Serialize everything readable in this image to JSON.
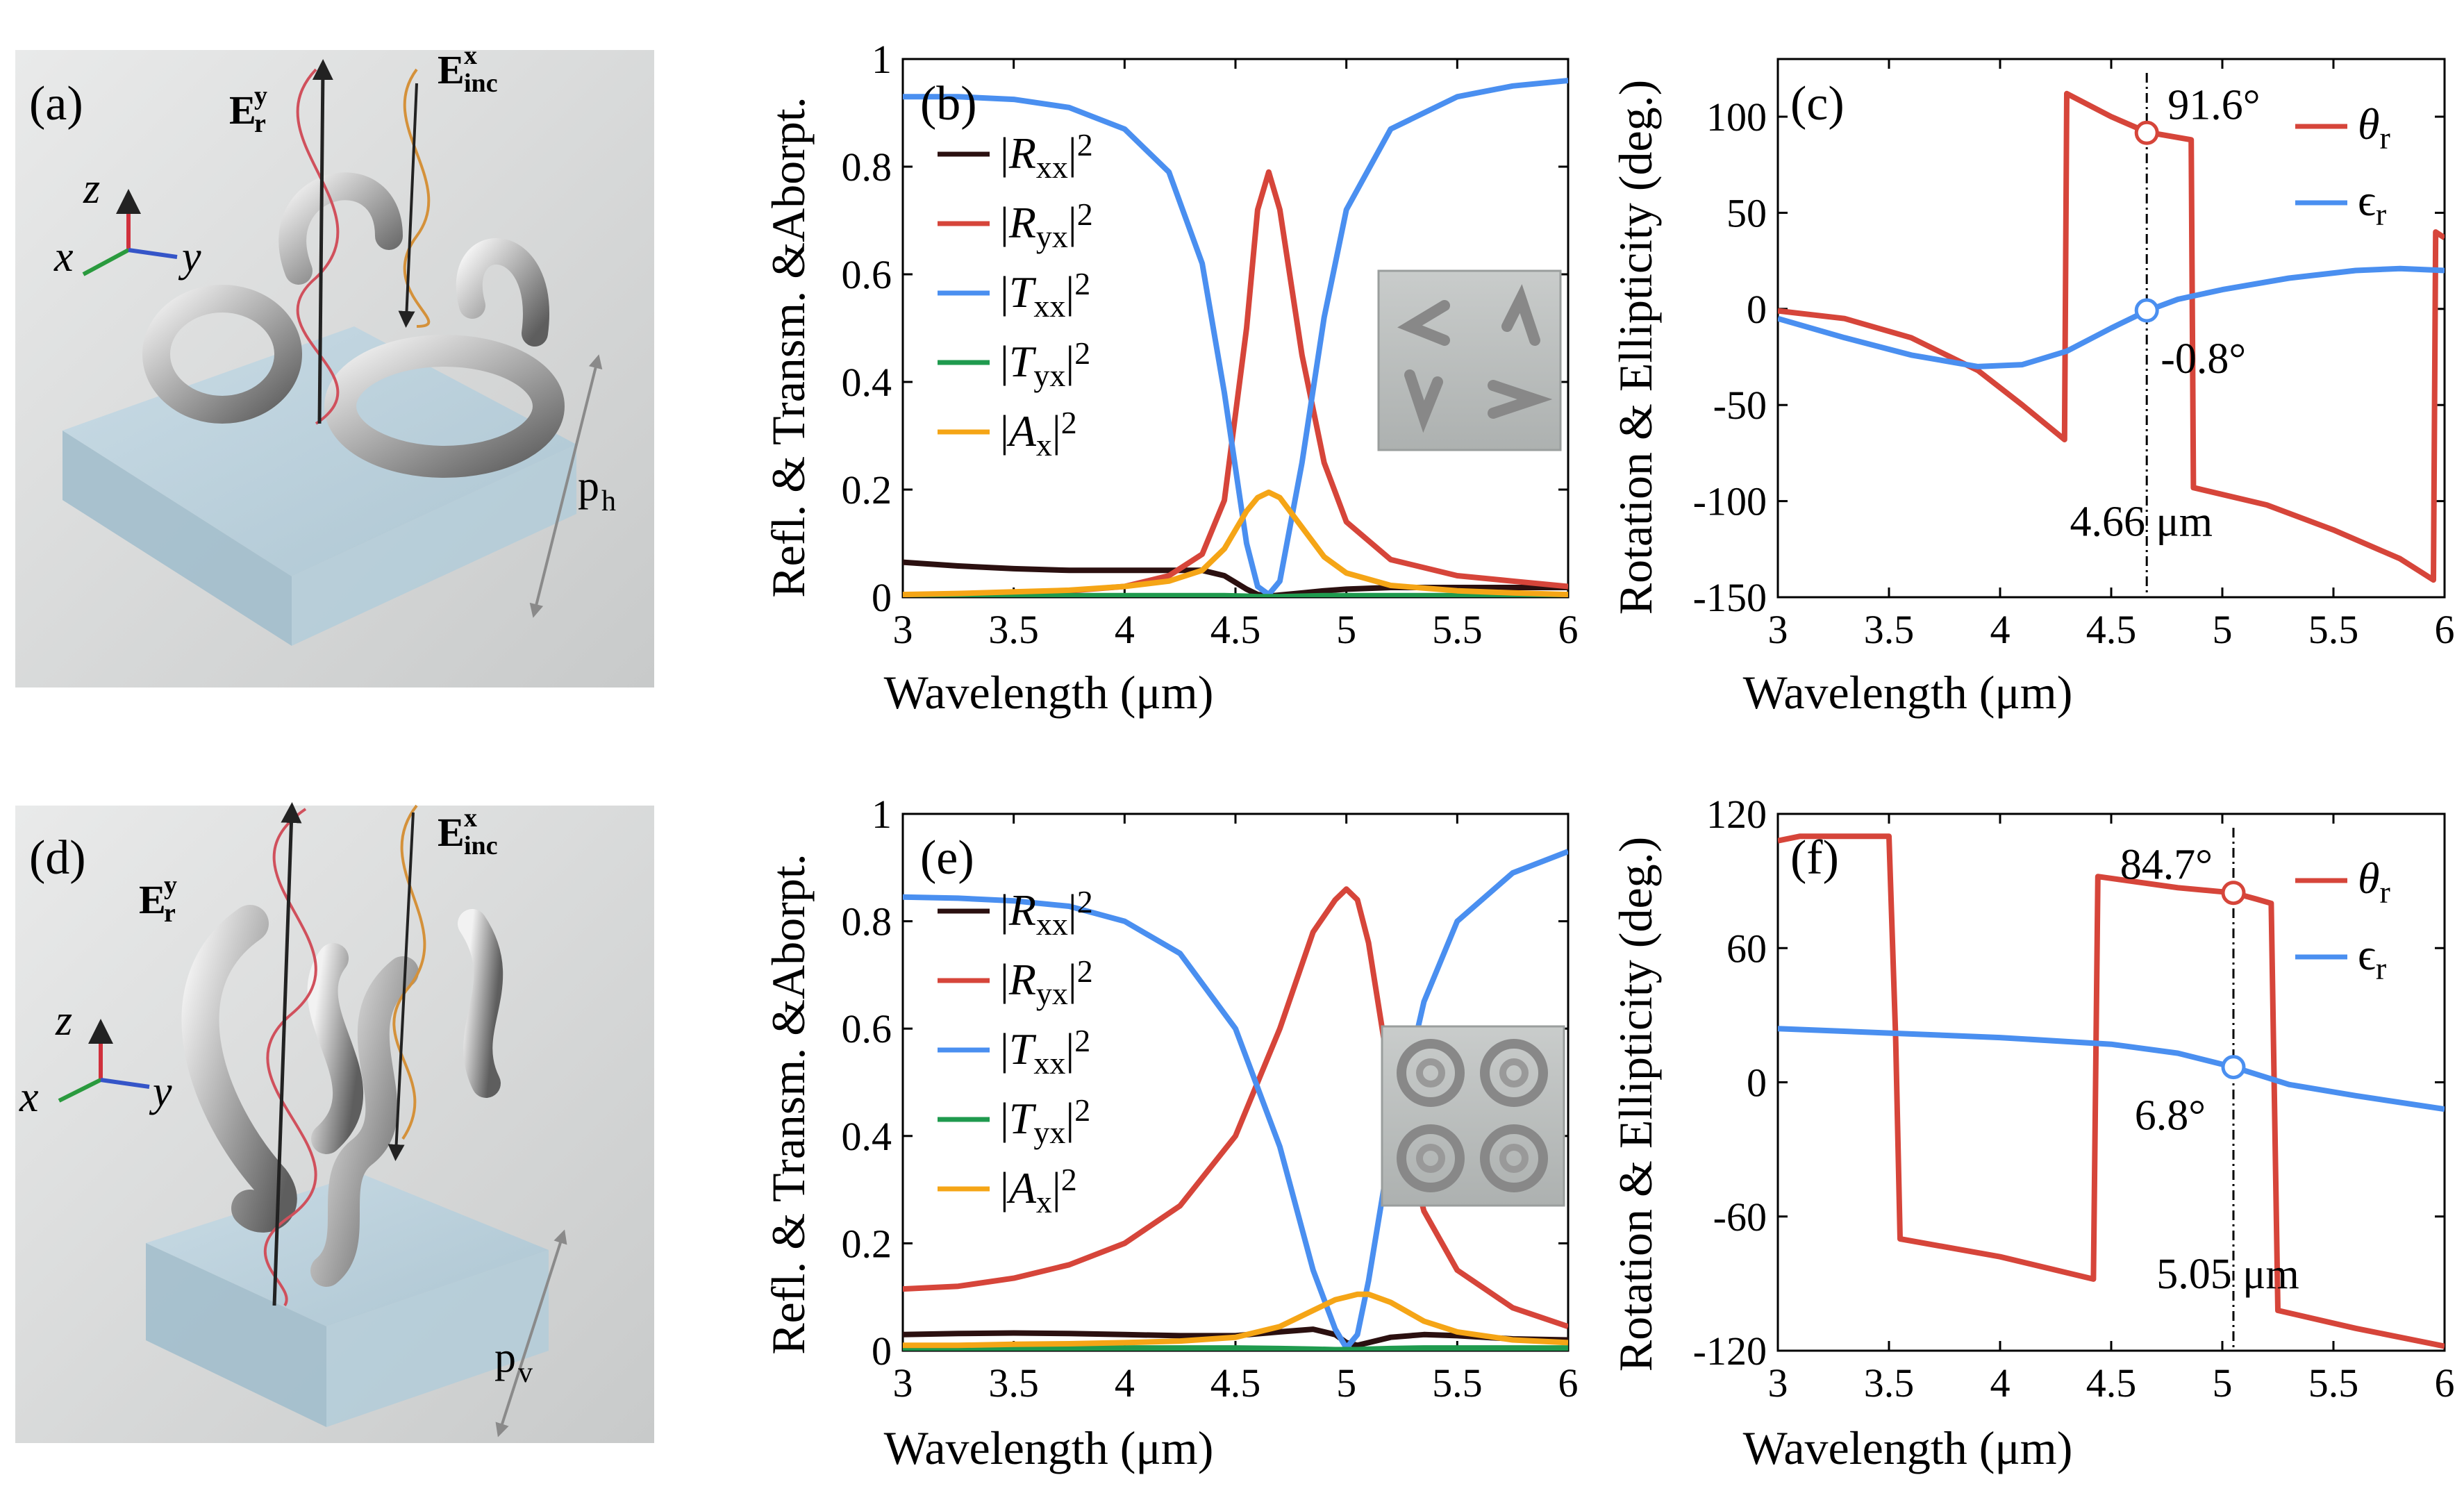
{
  "panel_labels": [
    "(a)",
    "(b)",
    "(c)",
    "(d)",
    "(e)",
    "(f)"
  ],
  "schematics": [
    {
      "label": "(a)",
      "E_r": "E",
      "E_r_sup": "y",
      "E_r_sub": "r",
      "E_inc": "E",
      "E_inc_sup": "x",
      "E_inc_sub": "inc",
      "axes": [
        "z",
        "x",
        "y"
      ],
      "period_main": "p",
      "period_sub": "h",
      "color_r": "#d0505c",
      "color_inc": "#d4913a"
    },
    {
      "label": "(d)",
      "E_r": "E",
      "E_r_sup": "y",
      "E_r_sub": "r",
      "E_inc": "E",
      "E_inc_sup": "x",
      "E_inc_sub": "inc",
      "axes": [
        "z",
        "x",
        "y"
      ],
      "period_main": "p",
      "period_sub": "v",
      "color_r": "#d0505c",
      "color_inc": "#d4913a"
    }
  ],
  "colors": {
    "Rxx": "#2b1010",
    "Ryx": "#d6453a",
    "Txx": "#4a8ff0",
    "Tyx": "#1f9a4e",
    "Ax": "#f5a516",
    "theta": "#d6453a",
    "eps": "#4a8ff0"
  },
  "chart_data": [
    {
      "id": "b",
      "label": "(b)",
      "type": "line",
      "xlabel": "Wavelength (μm)",
      "ylabel": "Refl. & Transm. &Aborpt.",
      "xlim": [
        3,
        6
      ],
      "ylim": [
        0,
        1
      ],
      "xticks": [
        "3",
        "3.5",
        "4",
        "4.5",
        "5",
        "5.5",
        "6"
      ],
      "yticks": [
        "0",
        "0.2",
        "0.4",
        "0.6",
        "0.8",
        "1"
      ],
      "x": [
        3.0,
        3.25,
        3.5,
        3.75,
        4.0,
        4.2,
        4.35,
        4.45,
        4.55,
        4.6,
        4.65,
        4.7,
        4.8,
        4.9,
        5.0,
        5.2,
        5.5,
        5.75,
        6.0
      ],
      "legend": [
        "|R_xx|^2",
        "|R_yx|^2",
        "|T_xx|^2",
        "|T_yx|^2",
        "|A_x|^2"
      ],
      "series": [
        {
          "name": "|R_xx|^2",
          "key": "Rxx",
          "values": [
            0.065,
            0.058,
            0.053,
            0.05,
            0.05,
            0.05,
            0.05,
            0.04,
            0.015,
            0.005,
            0.002,
            0.004,
            0.008,
            0.012,
            0.015,
            0.018,
            0.018,
            0.018,
            0.018
          ]
        },
        {
          "name": "|R_yx|^2",
          "key": "Ryx",
          "values": [
            0.003,
            0.005,
            0.008,
            0.012,
            0.02,
            0.04,
            0.08,
            0.18,
            0.5,
            0.72,
            0.79,
            0.72,
            0.45,
            0.25,
            0.14,
            0.07,
            0.04,
            0.03,
            0.02
          ]
        },
        {
          "name": "|T_xx|^2",
          "key": "Txx",
          "values": [
            0.93,
            0.93,
            0.925,
            0.91,
            0.87,
            0.79,
            0.62,
            0.38,
            0.1,
            0.02,
            0.005,
            0.03,
            0.25,
            0.52,
            0.72,
            0.87,
            0.93,
            0.95,
            0.96
          ]
        },
        {
          "name": "|T_yx|^2",
          "key": "Tyx",
          "values": [
            0.003,
            0.003,
            0.003,
            0.003,
            0.003,
            0.003,
            0.003,
            0.003,
            0.002,
            0.001,
            0.001,
            0.001,
            0.002,
            0.003,
            0.003,
            0.003,
            0.003,
            0.003,
            0.003
          ]
        },
        {
          "name": "|A_x|^2",
          "key": "Ax",
          "values": [
            0.005,
            0.007,
            0.01,
            0.013,
            0.02,
            0.03,
            0.05,
            0.09,
            0.16,
            0.185,
            0.195,
            0.185,
            0.13,
            0.075,
            0.045,
            0.022,
            0.012,
            0.008,
            0.005
          ]
        }
      ]
    },
    {
      "id": "c",
      "label": "(c)",
      "type": "line",
      "xlabel": "Wavelength (μm)",
      "ylabel": "Rotation & Ellipticity (deg.)",
      "xlim": [
        3,
        6
      ],
      "ylim": [
        -150,
        130
      ],
      "xticks": [
        "3",
        "3.5",
        "4",
        "4.5",
        "5",
        "5.5",
        "6"
      ],
      "yticks": [
        "-150",
        "-100",
        "-50",
        "0",
        "50",
        "100"
      ],
      "ytick_values": [
        -150,
        -100,
        -50,
        0,
        50,
        100
      ],
      "legend": [
        "θ_r",
        "ϵ_r"
      ],
      "series": [
        {
          "name": "θ_r",
          "key": "theta",
          "x": [
            3.0,
            3.3,
            3.6,
            3.9,
            4.1,
            4.29,
            4.3,
            4.5,
            4.66,
            4.86,
            4.87,
            5.2,
            5.5,
            5.8,
            5.95,
            5.96,
            6.0
          ],
          "values": [
            -1,
            -5,
            -15,
            -32,
            -50,
            -68,
            112,
            100,
            92,
            88,
            -93,
            -102,
            -115,
            -130,
            -141,
            40,
            37
          ]
        },
        {
          "name": "ϵ_r",
          "key": "eps",
          "x": [
            3.0,
            3.3,
            3.6,
            3.9,
            4.1,
            4.3,
            4.5,
            4.66,
            4.8,
            5.0,
            5.3,
            5.6,
            5.8,
            6.0
          ],
          "values": [
            -5,
            -15,
            -24,
            -30,
            -29,
            -22,
            -10,
            -1,
            5,
            10,
            16,
            20,
            21,
            20
          ]
        }
      ],
      "marker_x": 4.66,
      "marker_label": "4.66 μm",
      "annotations": [
        {
          "series": "θ_r",
          "x": 4.66,
          "y": 91.6,
          "text": "91.6°"
        },
        {
          "series": "ϵ_r",
          "x": 4.66,
          "y": -0.8,
          "text": "-0.8°"
        }
      ]
    },
    {
      "id": "e",
      "label": "(e)",
      "type": "line",
      "xlabel": "Wavelength (μm)",
      "ylabel": "Refl. & Transm. &Aborpt.",
      "xlim": [
        3,
        6
      ],
      "ylim": [
        0,
        1
      ],
      "xticks": [
        "3",
        "3.5",
        "4",
        "4.5",
        "5",
        "5.5",
        "6"
      ],
      "yticks": [
        "0",
        "0.2",
        "0.4",
        "0.6",
        "0.8",
        "1"
      ],
      "x": [
        3.0,
        3.25,
        3.5,
        3.75,
        4.0,
        4.25,
        4.5,
        4.7,
        4.85,
        4.95,
        5.0,
        5.05,
        5.1,
        5.2,
        5.35,
        5.5,
        5.75,
        6.0
      ],
      "legend": [
        "|R_xx|^2",
        "|R_yx|^2",
        "|T_xx|^2",
        "|T_yx|^2",
        "|A_x|^2"
      ],
      "series": [
        {
          "name": "|R_xx|^2",
          "key": "Rxx",
          "values": [
            0.03,
            0.032,
            0.033,
            0.032,
            0.03,
            0.028,
            0.028,
            0.035,
            0.04,
            0.03,
            0.015,
            0.01,
            0.015,
            0.025,
            0.03,
            0.028,
            0.022,
            0.02
          ]
        },
        {
          "name": "|R_yx|^2",
          "key": "Ryx",
          "values": [
            0.115,
            0.12,
            0.135,
            0.16,
            0.2,
            0.27,
            0.4,
            0.6,
            0.78,
            0.84,
            0.86,
            0.84,
            0.76,
            0.5,
            0.26,
            0.15,
            0.08,
            0.045
          ]
        },
        {
          "name": "|T_xx|^2",
          "key": "Txx",
          "values": [
            0.845,
            0.843,
            0.838,
            0.828,
            0.8,
            0.74,
            0.6,
            0.38,
            0.15,
            0.04,
            0.005,
            0.03,
            0.13,
            0.38,
            0.65,
            0.8,
            0.89,
            0.93
          ]
        },
        {
          "name": "|T_yx|^2",
          "key": "Tyx",
          "values": [
            0.005,
            0.005,
            0.005,
            0.005,
            0.005,
            0.005,
            0.005,
            0.004,
            0.003,
            0.002,
            0.002,
            0.002,
            0.003,
            0.004,
            0.005,
            0.005,
            0.005,
            0.005
          ]
        },
        {
          "name": "|A_x|^2",
          "key": "Ax",
          "values": [
            0.01,
            0.01,
            0.012,
            0.013,
            0.015,
            0.018,
            0.025,
            0.045,
            0.075,
            0.095,
            0.1,
            0.105,
            0.105,
            0.09,
            0.055,
            0.035,
            0.02,
            0.015
          ]
        }
      ]
    },
    {
      "id": "f",
      "label": "(f)",
      "type": "line",
      "xlabel": "Wavelength (μm)",
      "ylabel": "Rotation & Ellipticity (deg.)",
      "xlim": [
        3,
        6
      ],
      "ylim": [
        -120,
        120
      ],
      "xticks": [
        "3",
        "3.5",
        "4",
        "4.5",
        "5",
        "5.5",
        "6"
      ],
      "yticks": [
        "-120",
        "-60",
        "0",
        "60",
        "120"
      ],
      "ytick_values": [
        -120,
        -60,
        0,
        60,
        120
      ],
      "legend": [
        "θ_r",
        "ϵ_r"
      ],
      "series": [
        {
          "name": "θ_r",
          "key": "theta",
          "x": [
            3.0,
            3.1,
            3.5,
            3.53,
            3.55,
            4.0,
            4.42,
            4.44,
            4.8,
            5.05,
            5.15,
            5.22,
            5.25,
            5.6,
            6.0
          ],
          "values": [
            108,
            110,
            110,
            20,
            -70,
            -78,
            -88,
            92,
            87,
            84.7,
            82,
            80,
            -102,
            -110,
            -118
          ]
        },
        {
          "name": "ϵ_r",
          "key": "eps",
          "x": [
            3.0,
            3.5,
            4.0,
            4.5,
            4.8,
            5.05,
            5.3,
            5.6,
            6.0
          ],
          "values": [
            24,
            22,
            20,
            17,
            13,
            6.8,
            -1,
            -6,
            -12
          ]
        }
      ],
      "marker_x": 5.05,
      "marker_label": "5.05 μm",
      "annotations": [
        {
          "series": "θ_r",
          "x": 5.05,
          "y": 84.7,
          "text": "84.7°"
        },
        {
          "series": "ϵ_r",
          "x": 5.05,
          "y": 6.8,
          "text": "6.8°"
        }
      ]
    }
  ]
}
